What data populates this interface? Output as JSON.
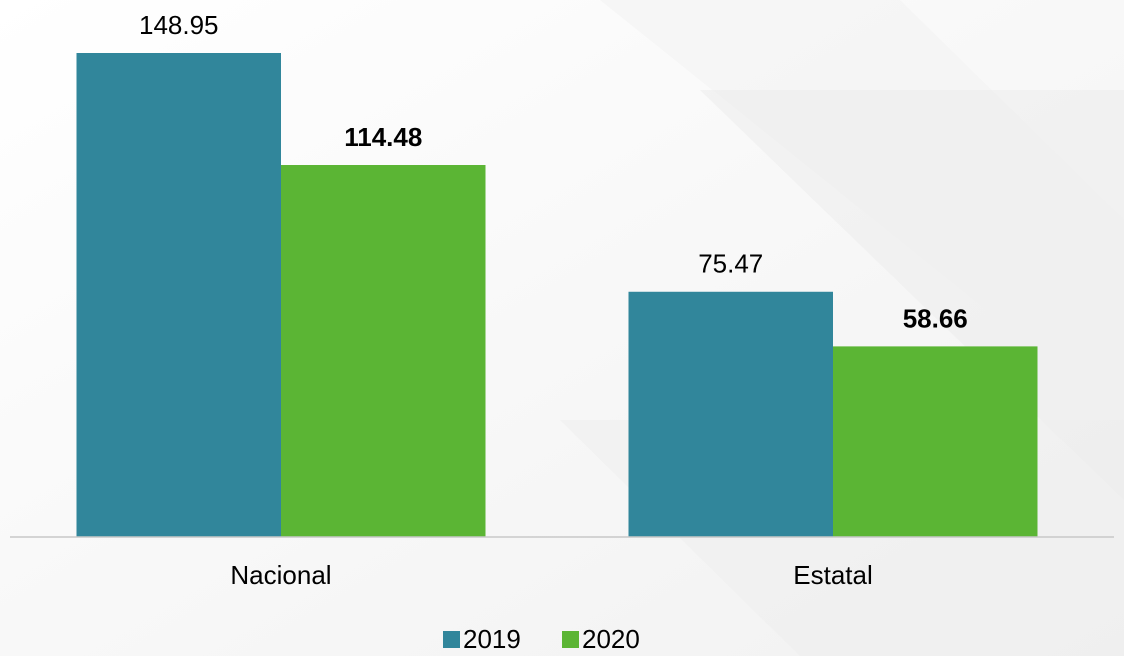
{
  "chart_data": {
    "type": "bar",
    "categories": [
      "Nacional",
      "Estatal"
    ],
    "series": [
      {
        "name": "2019",
        "color": "#31869b",
        "bold_labels": false,
        "values": [
          148.95,
          75.47
        ]
      },
      {
        "name": "2020",
        "color": "#5bb534",
        "bold_labels": true,
        "values": [
          114.48,
          58.66
        ]
      }
    ],
    "legend": "bottom"
  }
}
